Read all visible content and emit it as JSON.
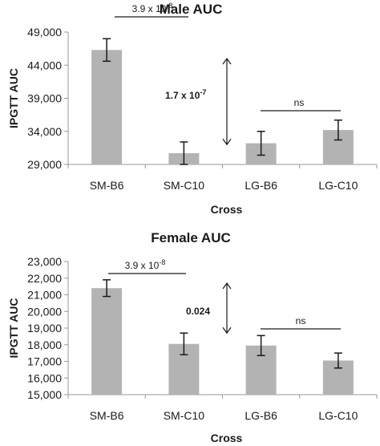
{
  "chart_data": [
    {
      "type": "bar",
      "title": "Male AUC",
      "xlabel": "Cross",
      "ylabel": "IPGTT AUC",
      "categories": [
        "SM-B6",
        "SM-C10",
        "LG-B6",
        "LG-C10"
      ],
      "values": [
        46300,
        30700,
        32200,
        34200
      ],
      "errors": [
        1700,
        1700,
        1800,
        1500
      ],
      "ylim": [
        29000,
        49000
      ],
      "yticks": [
        29000,
        34000,
        39000,
        44000,
        49000
      ],
      "ytick_labels": [
        "29,000",
        "34,000",
        "39,000",
        "44,000",
        "49,000"
      ],
      "color": "#b3b3b3",
      "annotations": [
        {
          "kind": "bracket",
          "from": "SM-B6",
          "to": "SM-C10",
          "label_base": "3.9 x 10",
          "label_exp": "-8"
        },
        {
          "kind": "arrow",
          "label_base": "1.7 x 10",
          "label_exp": "-7",
          "y_range": [
            32000,
            45000
          ]
        },
        {
          "kind": "bracket",
          "from": "LG-B6",
          "to": "LG-C10",
          "label_base": "ns",
          "label_exp": ""
        }
      ]
    },
    {
      "type": "bar",
      "title": "Female AUC",
      "xlabel": "Cross",
      "ylabel": "IPGTT AUC",
      "categories": [
        "SM-B6",
        "SM-C10",
        "LG-B6",
        "LG-C10"
      ],
      "values": [
        21400,
        18050,
        17950,
        17050
      ],
      "errors": [
        500,
        650,
        600,
        450
      ],
      "ylim": [
        15000,
        23000
      ],
      "yticks": [
        15000,
        16000,
        17000,
        18000,
        19000,
        20000,
        21000,
        22000,
        23000
      ],
      "ytick_labels": [
        "15,000",
        "16,000",
        "17,000",
        "18,000",
        "19,000",
        "20,000",
        "21,000",
        "22,000",
        "23,000"
      ],
      "color": "#b3b3b3",
      "annotations": [
        {
          "kind": "bracket",
          "from": "SM-B6",
          "to": "SM-C10",
          "label_base": "3.9 x 10",
          "label_exp": "-8"
        },
        {
          "kind": "arrow",
          "label_base": "0.024",
          "label_exp": "",
          "y_range": [
            18700,
            21700
          ]
        },
        {
          "kind": "bracket",
          "from": "LG-B6",
          "to": "LG-C10",
          "label_base": "ns",
          "label_exp": ""
        }
      ]
    }
  ]
}
